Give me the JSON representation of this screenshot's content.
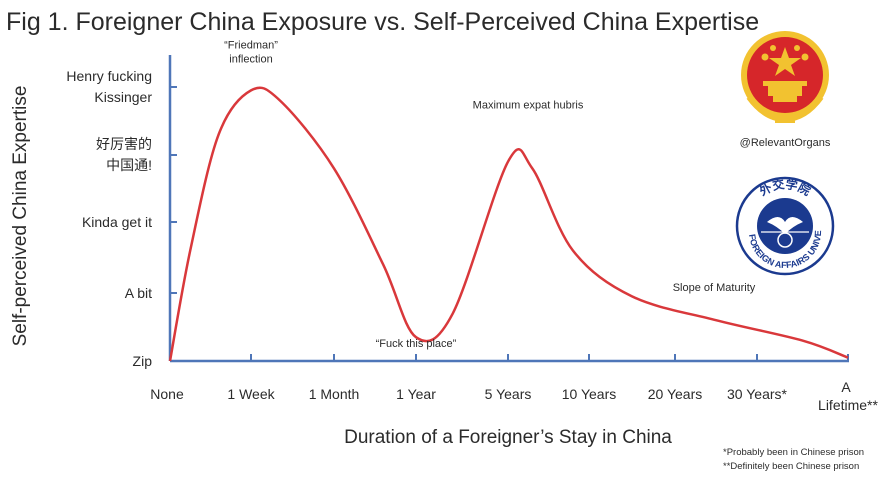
{
  "chart_data": {
    "type": "line",
    "title": "Fig 1. Foreigner China Exposure vs. Self-Perceived China Expertise",
    "xlabel": "Duration of a Foreigner’s Stay in China",
    "ylabel": "Self-perceived China Expertise",
    "x_categories": [
      "None",
      "1 Week",
      "1 Month",
      "1 Year",
      "5 Years",
      "10 Years",
      "20 Years",
      "30 Years*",
      "A Lifetime**"
    ],
    "y_categories": [
      "Zip",
      "A bit",
      "Kinda get it",
      "好厉害的中国通!",
      "Henry fucking Kissinger"
    ],
    "y_tick_lines": {
      "henry": [
        "Henry fucking",
        "Kissinger"
      ],
      "cn": [
        "好厉害的",
        "中国通!"
      ]
    },
    "x_tick_lines": {
      "lifetime": [
        "A",
        "Lifetime**"
      ]
    },
    "series": [
      {
        "points": [
          [
            0,
            0
          ],
          [
            0.25,
            1.6
          ],
          [
            0.6,
            3.3
          ],
          [
            1,
            3.95
          ],
          [
            1.35,
            3.8
          ],
          [
            2,
            2.8
          ],
          [
            2.6,
            1.4
          ],
          [
            3,
            0.35
          ],
          [
            3.4,
            0.7
          ],
          [
            4,
            2.9
          ],
          [
            4.3,
            2.8
          ],
          [
            4.8,
            1.6
          ],
          [
            5.5,
            0.95
          ],
          [
            6.5,
            0.6
          ],
          [
            7.5,
            0.3
          ],
          [
            8,
            0.05
          ]
        ],
        "color": "#d9383b"
      }
    ],
    "annotations": [
      {
        "lines": [
          "“Friedman”",
          "inflection"
        ],
        "x": 1,
        "y": 3.95
      },
      {
        "lines": [
          "Maximum expat hubris"
        ],
        "x": 4,
        "y": 2.9
      },
      {
        "lines": [
          "“Fuck this place”"
        ],
        "x": 3,
        "y": 0.35
      },
      {
        "lines": [
          "Slope of Maturity"
        ],
        "x": 6.5,
        "y": 0.6
      }
    ],
    "axis_color": "#4f76b8",
    "grid": false
  },
  "credit": "@RelevantOrgans",
  "footnotes": [
    "*Probably been in Chinese prison",
    "**Definitely been Chinese prison"
  ],
  "logos": {
    "emblem": {
      "name": "national-emblem-icon",
      "colors": {
        "red": "#d6262a",
        "gold": "#f2c230"
      }
    },
    "university": {
      "name": "university-seal-icon",
      "text": "CHINA FOREIGN AFFAIRS UNIVERSITY",
      "top_text": "外交学院",
      "colors": {
        "blue": "#1b3a8f"
      }
    }
  }
}
